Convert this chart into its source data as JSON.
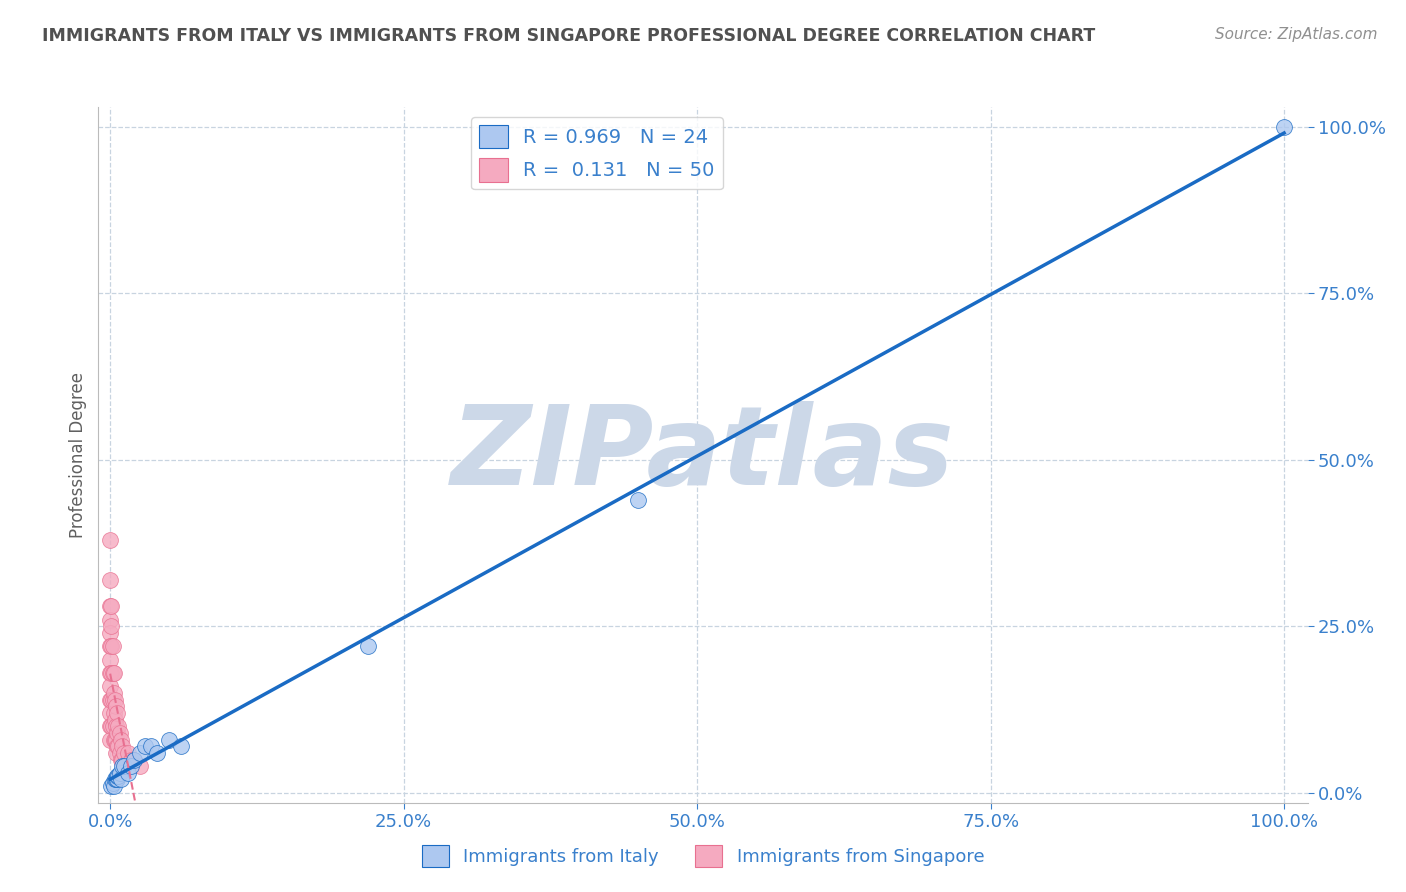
{
  "title": "IMMIGRANTS FROM ITALY VS IMMIGRANTS FROM SINGAPORE PROFESSIONAL DEGREE CORRELATION CHART",
  "source": "Source: ZipAtlas.com",
  "ylabel": "Professional Degree",
  "R_italy": 0.969,
  "N_italy": 24,
  "R_singapore": 0.131,
  "N_singapore": 50,
  "italy_color": "#adc8f0",
  "singapore_color": "#f5aac0",
  "italy_line_color": "#1a6bc4",
  "singapore_line_color": "#e87090",
  "watermark": "ZIPatlas",
  "watermark_color": "#ccd8e8",
  "italy_x": [
    0.001,
    0.002,
    0.003,
    0.004,
    0.005,
    0.006,
    0.006,
    0.007,
    0.008,
    0.009,
    0.01,
    0.012,
    0.015,
    0.018,
    0.02,
    0.025,
    0.03,
    0.035,
    0.04,
    0.05,
    0.06,
    0.22,
    0.45,
    1.0
  ],
  "italy_y": [
    0.01,
    0.015,
    0.01,
    0.02,
    0.02,
    0.02,
    0.025,
    0.025,
    0.03,
    0.02,
    0.04,
    0.04,
    0.03,
    0.04,
    0.05,
    0.06,
    0.07,
    0.07,
    0.06,
    0.08,
    0.07,
    0.22,
    0.44,
    1.0
  ],
  "singapore_x": [
    0.0,
    0.0,
    0.0,
    0.0,
    0.0,
    0.0,
    0.0,
    0.0,
    0.0,
    0.0,
    0.0,
    0.0,
    0.0,
    0.001,
    0.001,
    0.001,
    0.001,
    0.001,
    0.001,
    0.002,
    0.002,
    0.002,
    0.002,
    0.003,
    0.003,
    0.003,
    0.003,
    0.004,
    0.004,
    0.004,
    0.005,
    0.005,
    0.005,
    0.005,
    0.006,
    0.006,
    0.006,
    0.007,
    0.007,
    0.008,
    0.008,
    0.009,
    0.009,
    0.01,
    0.01,
    0.012,
    0.015,
    0.018,
    0.02,
    0.025
  ],
  "singapore_y": [
    0.38,
    0.32,
    0.28,
    0.26,
    0.24,
    0.22,
    0.2,
    0.18,
    0.16,
    0.14,
    0.12,
    0.1,
    0.08,
    0.28,
    0.25,
    0.22,
    0.18,
    0.14,
    0.1,
    0.22,
    0.18,
    0.14,
    0.1,
    0.18,
    0.15,
    0.12,
    0.08,
    0.14,
    0.11,
    0.08,
    0.13,
    0.1,
    0.08,
    0.06,
    0.12,
    0.09,
    0.07,
    0.1,
    0.07,
    0.09,
    0.06,
    0.08,
    0.05,
    0.07,
    0.05,
    0.06,
    0.06,
    0.05,
    0.05,
    0.04
  ],
  "xticks": [
    0.0,
    0.25,
    0.5,
    0.75,
    1.0
  ],
  "yticks": [
    0.0,
    0.25,
    0.5,
    0.75,
    1.0
  ],
  "xticklabels": [
    "0.0%",
    "25.0%",
    "50.0%",
    "75.0%",
    "100.0%"
  ],
  "yticklabels": [
    "0.0%",
    "25.0%",
    "50.0%",
    "75.0%",
    "100.0%"
  ],
  "background_color": "#ffffff",
  "grid_color": "#c8d4e0",
  "title_color": "#505050",
  "tick_color": "#3a80cc",
  "source_color": "#909090"
}
